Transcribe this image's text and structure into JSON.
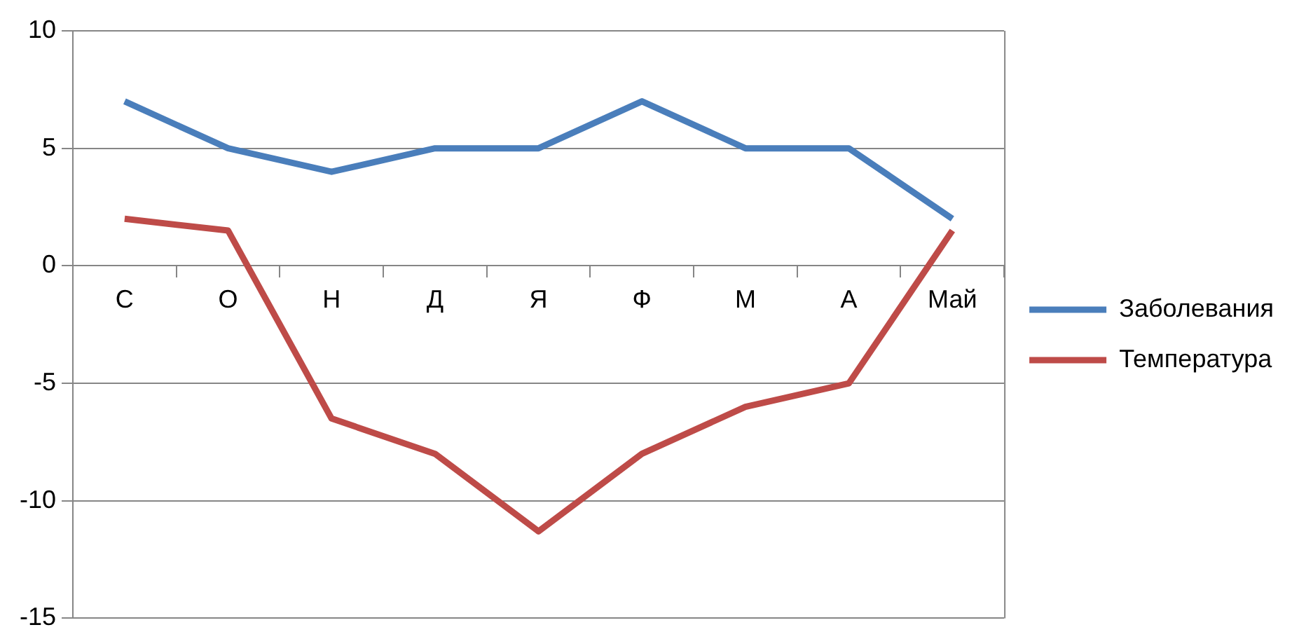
{
  "chart_data": {
    "type": "line",
    "categories": [
      "С",
      "О",
      "Н",
      "Д",
      "Я",
      "Ф",
      "М",
      "А",
      "Май"
    ],
    "series": [
      {
        "name": "Заболевания",
        "color": "#4a7ebb",
        "values": [
          7,
          5,
          4,
          5,
          5,
          7,
          5,
          5,
          2
        ]
      },
      {
        "name": "Температура",
        "color": "#be4b48",
        "values": [
          2,
          1.5,
          -6.5,
          -8,
          -11.3,
          -8,
          -6,
          -5,
          1.5
        ]
      }
    ],
    "ylim": [
      -15,
      10
    ],
    "yticks": [
      -15,
      -10,
      -5,
      0,
      5,
      10
    ],
    "grid": "y",
    "legend": "right",
    "marker": "none",
    "line_style": "solid"
  }
}
